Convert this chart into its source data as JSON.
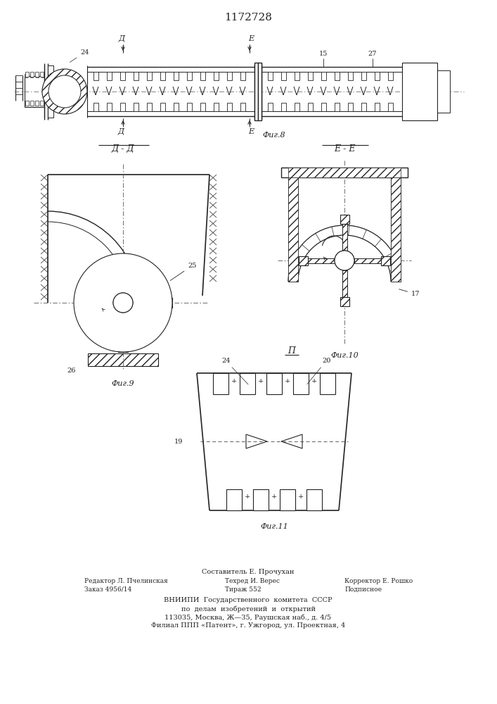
{
  "patent_number": "1172728",
  "fig8_label": "Фиг.8",
  "fig9_label": "Фиг.9",
  "fig10_label": "Фиг.10",
  "fig11_label": "Фиг.11",
  "section_dd": "Д - Д",
  "section_ee": "Е - Е",
  "section_pi": "П",
  "label_d": "Д",
  "label_e": "Е",
  "num_24": "24",
  "num_15": "15",
  "num_27": "27",
  "num_25": "25",
  "num_26": "26",
  "num_17": "17",
  "num_19": "19",
  "num_20": "20",
  "footer_line1": "Составитель Е. Прочухан",
  "footer_line2_left": "Редактор Л. Пчелинская",
  "footer_line2_mid": "Техред И. Верес",
  "footer_line2_right": "Корректор Е. Рошко",
  "footer_line3_left": "Заказ 4956/14",
  "footer_line3_mid": "Тираж 552",
  "footer_line3_right": "Подписное",
  "footer_vniiipi": "ВНИИПИ  Государственного  комитета  СССР",
  "footer_po": "по  делам  изобретений  и  открытий",
  "footer_addr1": "113035, Москва, Ж—35, Раушская наб., д. 4/5",
  "footer_addr2": "Филиал ППП «Патент», г. Ужгород, ул. Проектная, 4",
  "bg_color": "#ffffff",
  "line_color": "#222222"
}
